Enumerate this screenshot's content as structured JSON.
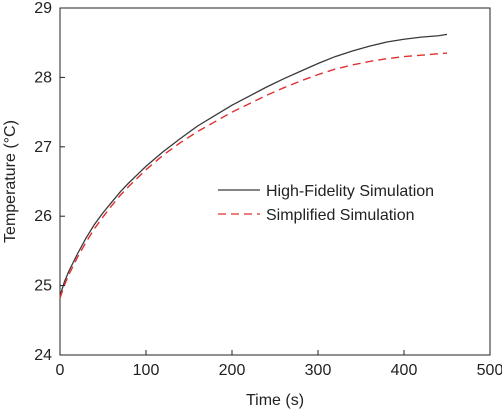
{
  "chart_data": {
    "type": "line",
    "title": "",
    "xlabel": "Time (s)",
    "ylabel": "Temperature (°C)",
    "xlim": [
      0,
      500
    ],
    "ylim": [
      24,
      29
    ],
    "xticks": [
      0,
      100,
      200,
      300,
      400,
      500
    ],
    "yticks": [
      24,
      25,
      26,
      27,
      28,
      29
    ],
    "grid": false,
    "legend_position": "center-right",
    "series": [
      {
        "name": "High-Fidelity Simulation",
        "color": "#3a3a3a",
        "dash": "solid",
        "x": [
          0,
          5,
          10,
          20,
          30,
          40,
          50,
          60,
          70,
          80,
          90,
          100,
          120,
          140,
          160,
          180,
          200,
          220,
          240,
          260,
          280,
          300,
          320,
          340,
          360,
          380,
          400,
          420,
          440,
          450
        ],
        "y": [
          24.85,
          25.05,
          25.2,
          25.45,
          25.68,
          25.88,
          26.05,
          26.2,
          26.35,
          26.48,
          26.6,
          26.72,
          26.93,
          27.12,
          27.3,
          27.45,
          27.6,
          27.73,
          27.86,
          27.98,
          28.09,
          28.2,
          28.3,
          28.38,
          28.45,
          28.51,
          28.55,
          28.58,
          28.6,
          28.62
        ]
      },
      {
        "name": "Simplified Simulation",
        "color": "#e03030",
        "dash": "dashed",
        "x": [
          0,
          5,
          10,
          20,
          30,
          40,
          50,
          60,
          70,
          80,
          90,
          100,
          120,
          140,
          160,
          180,
          200,
          220,
          240,
          260,
          280,
          300,
          320,
          340,
          360,
          380,
          400,
          420,
          440,
          450
        ],
        "y": [
          24.82,
          25.0,
          25.15,
          25.4,
          25.62,
          25.82,
          25.99,
          26.15,
          26.3,
          26.43,
          26.55,
          26.67,
          26.88,
          27.06,
          27.22,
          27.36,
          27.5,
          27.62,
          27.74,
          27.85,
          27.95,
          28.04,
          28.12,
          28.18,
          28.23,
          28.27,
          28.3,
          28.32,
          28.34,
          28.35
        ]
      }
    ]
  }
}
